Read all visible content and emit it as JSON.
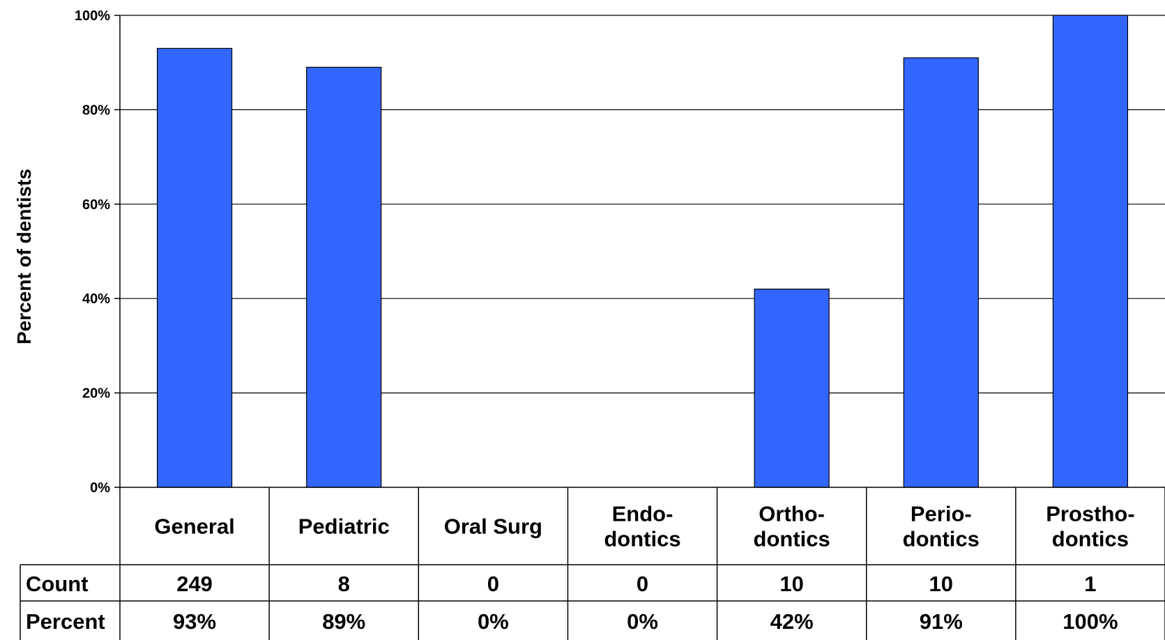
{
  "chart_data": {
    "type": "bar",
    "title": "",
    "xlabel": "",
    "ylabel": "Percent of dentists",
    "ylim": [
      0,
      100
    ],
    "yticks": [
      "0%",
      "20%",
      "40%",
      "60%",
      "80%",
      "100%"
    ],
    "ytick_values": [
      0,
      20,
      40,
      60,
      80,
      100
    ],
    "grid": true,
    "bar_color": "#3366FF",
    "categories": [
      [
        "General"
      ],
      [
        "Pediatric"
      ],
      [
        "Oral Surg"
      ],
      [
        "Endo-",
        "dontics"
      ],
      [
        "Ortho-",
        "dontics"
      ],
      [
        "Perio-",
        "dontics"
      ],
      [
        "Prostho-",
        "dontics"
      ]
    ],
    "values": [
      93,
      89,
      0,
      0,
      42,
      91,
      100
    ],
    "table": {
      "rows": [
        {
          "label": "Count",
          "values": [
            "249",
            "8",
            "0",
            "0",
            "10",
            "10",
            "1"
          ]
        },
        {
          "label": "Percent",
          "values": [
            "93%",
            "89%",
            "0%",
            "0%",
            "42%",
            "91%",
            "100%"
          ]
        }
      ]
    }
  }
}
